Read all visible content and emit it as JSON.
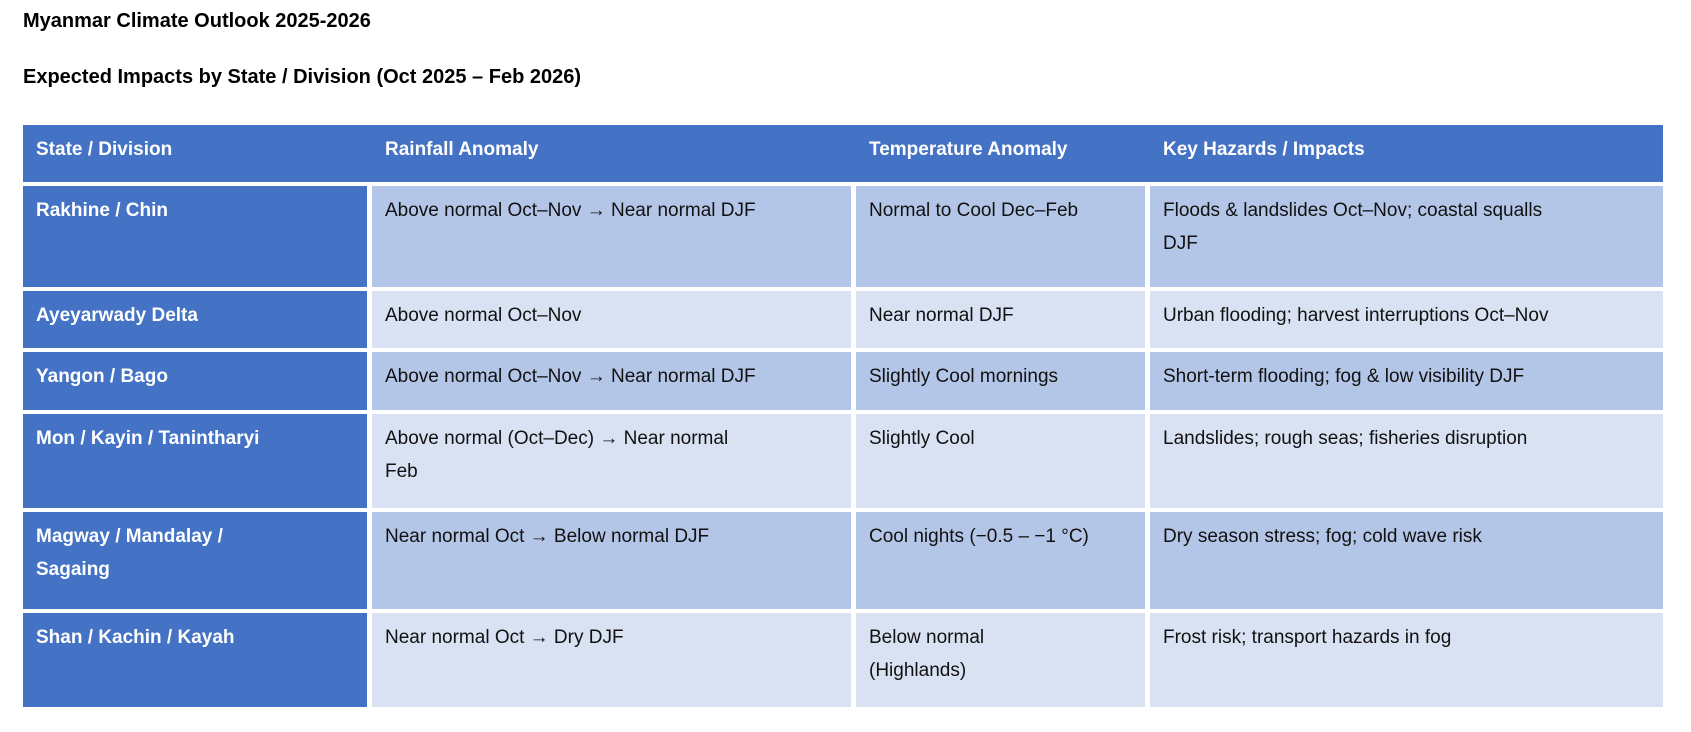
{
  "page": {
    "title": "Myanmar Climate Outlook 2025-2026",
    "subtitle": "Expected Impacts by State / Division (Oct 2025 – Feb 2026)"
  },
  "table": {
    "columns": [
      "State / Division",
      "Rainfall Anomaly",
      "Temperature Anomaly",
      "Key Hazards / Impacts"
    ],
    "rows": [
      {
        "state": "Rakhine / Chin",
        "rainfall": "Above normal Oct–Nov → Near normal DJF",
        "temperature": "Normal to Cool Dec–Feb",
        "hazards": "Floods & landslides Oct–Nov; coastal squalls\nDJF"
      },
      {
        "state": "Ayeyarwady Delta",
        "rainfall": "Above normal Oct–Nov",
        "temperature": "Near normal DJF",
        "hazards": "Urban flooding; harvest interruptions Oct–Nov"
      },
      {
        "state": "Yangon / Bago",
        "rainfall": "Above normal Oct–Nov → Near normal DJF",
        "temperature": "Slightly Cool mornings",
        "hazards": "Short-term flooding; fog & low visibility DJF"
      },
      {
        "state": "Mon / Kayin / Tanintharyi",
        "rainfall": "Above normal (Oct–Dec) → Near normal\nFeb",
        "temperature": "Slightly Cool",
        "hazards": "Landslides; rough seas; fisheries disruption"
      },
      {
        "state": "Magway / Mandalay /\nSagaing",
        "rainfall": "Near normal Oct → Below normal DJF",
        "temperature": "Cool nights (−0.5 – −1 °C)",
        "hazards": "Dry season stress; fog; cold wave risk"
      },
      {
        "state": "Shan / Kachin / Kayah",
        "rainfall": "Near normal Oct → Dry DJF",
        "temperature": "Below normal\n(Highlands)",
        "hazards": "Frost risk; transport hazards in fog"
      }
    ],
    "colors": {
      "header_bg": "#4472C4",
      "header_text": "#FFFFFF",
      "row_odd_bg": "#B4C6E7",
      "row_even_bg": "#D9E2F3",
      "body_text": "#111111"
    }
  }
}
